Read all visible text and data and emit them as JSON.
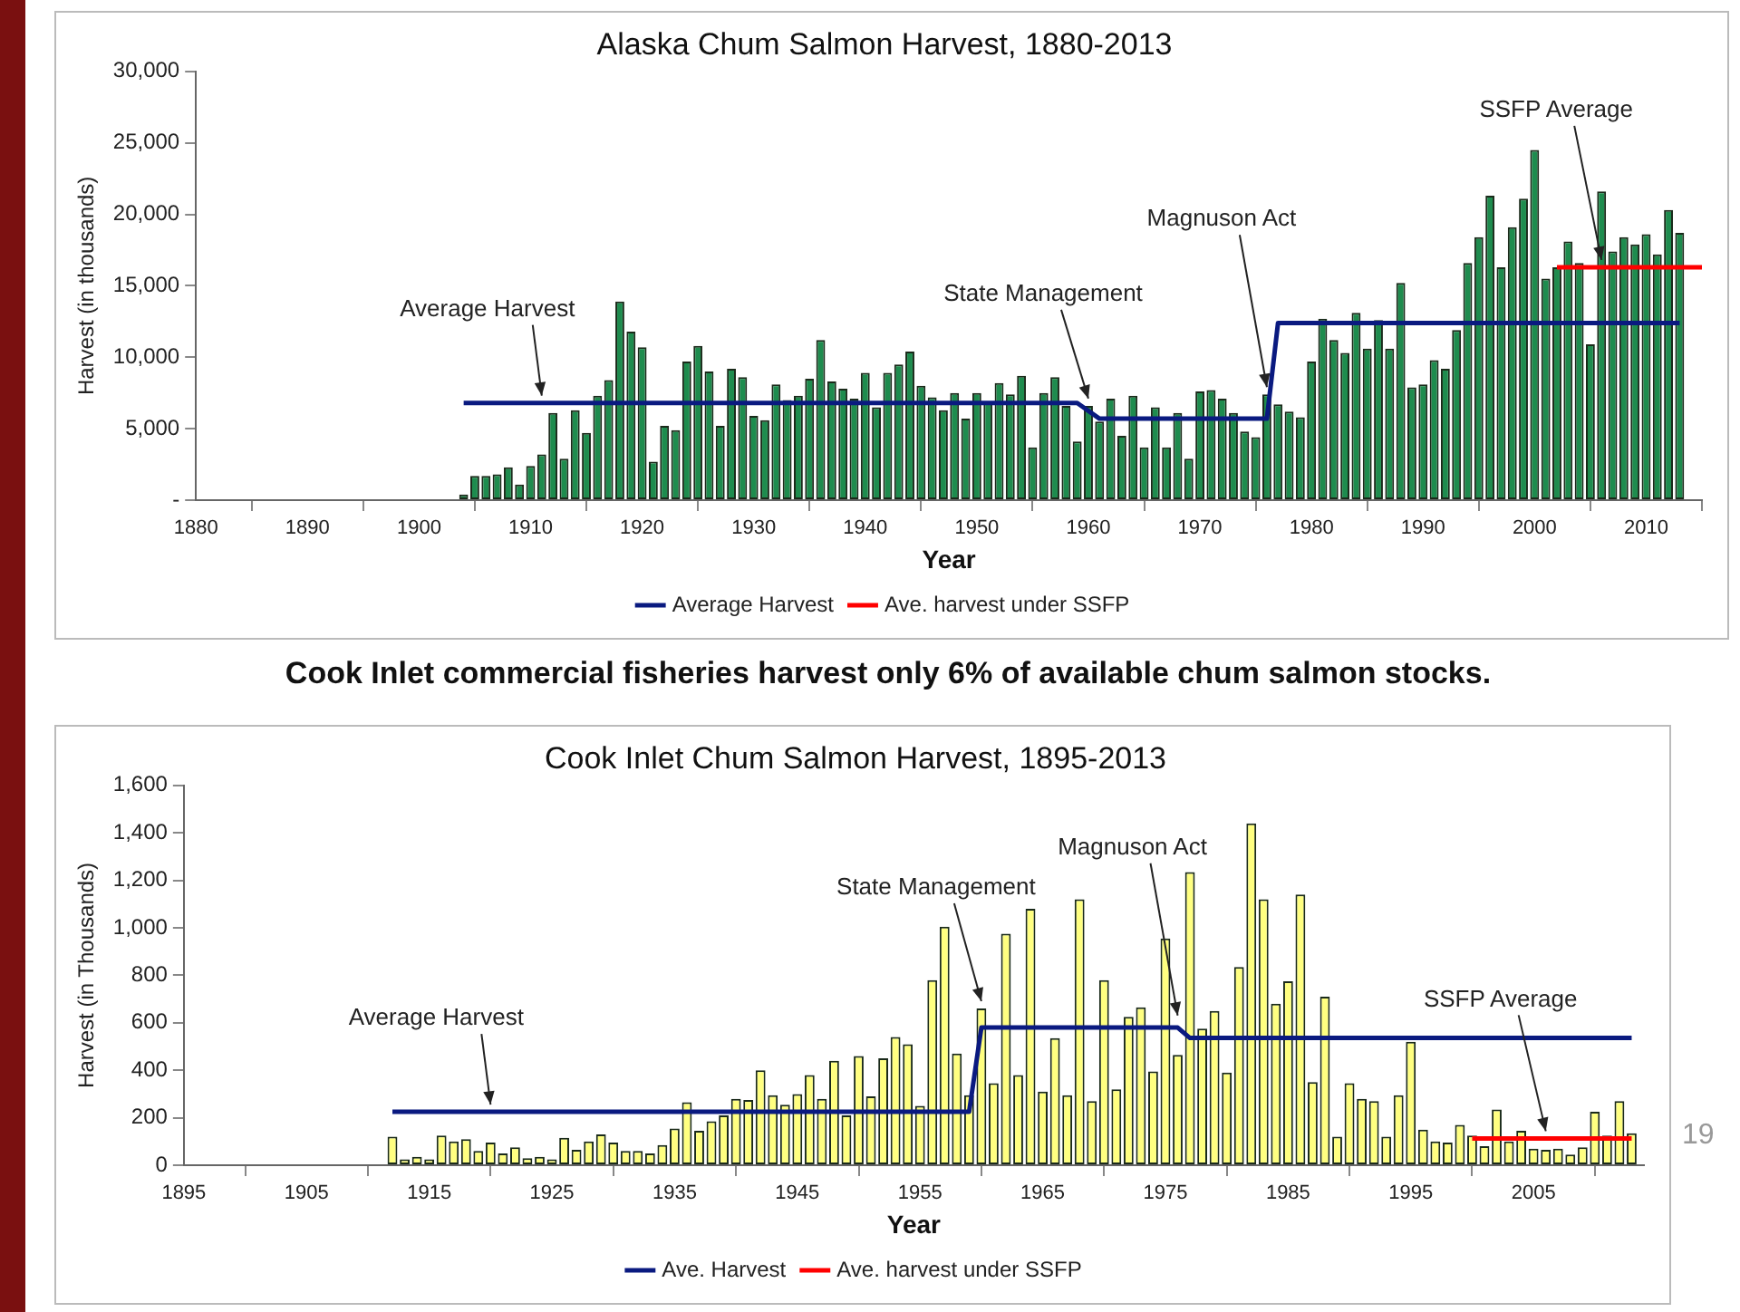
{
  "chart_data": [
    {
      "type": "bar",
      "title": "Alaska Chum Salmon Harvest, 1880-2013",
      "xlabel": "Year",
      "ylabel": "Harvest (in thousands)",
      "x": [
        1896,
        1897,
        1898,
        1899,
        1900,
        1901,
        1902,
        1903,
        1904,
        1905,
        1906,
        1907,
        1908,
        1909,
        1910,
        1911,
        1912,
        1913,
        1914,
        1915,
        1916,
        1917,
        1918,
        1919,
        1920,
        1921,
        1922,
        1923,
        1924,
        1925,
        1926,
        1927,
        1928,
        1929,
        1930,
        1931,
        1932,
        1933,
        1934,
        1935,
        1936,
        1937,
        1938,
        1939,
        1940,
        1941,
        1942,
        1943,
        1944,
        1945,
        1946,
        1947,
        1948,
        1949,
        1950,
        1951,
        1952,
        1953,
        1954,
        1955,
        1956,
        1957,
        1958,
        1959,
        1960,
        1961,
        1962,
        1963,
        1964,
        1965,
        1966,
        1967,
        1968,
        1969,
        1970,
        1971,
        1972,
        1973,
        1974,
        1975,
        1976,
        1977,
        1978,
        1979,
        1980,
        1981,
        1982,
        1983,
        1984,
        1985,
        1986,
        1987,
        1988,
        1989,
        1990,
        1991,
        1992,
        1993,
        1994,
        1995,
        1996,
        1997,
        1998,
        1999,
        2000,
        2001,
        2002,
        2003,
        2004,
        2005,
        2006,
        2007,
        2008,
        2009,
        2010,
        2011,
        2012,
        2013
      ],
      "series": [
        {
          "color": "#1e8c4e",
          "values": [
            0,
            0,
            0,
            0,
            0,
            null,
            null,
            null,
            400,
            1700,
            1700,
            1800,
            2300,
            1100,
            2400,
            3200,
            6100,
            2900,
            6300,
            4700,
            7300,
            8400,
            13900,
            11800,
            10700,
            2700,
            5200,
            4900,
            9700,
            10800,
            9000,
            5200,
            9200,
            8600,
            5900,
            5600,
            8100,
            7000,
            7300,
            8500,
            11200,
            8300,
            7800,
            7100,
            8900,
            6500,
            8900,
            9500,
            10400,
            8000,
            7200,
            6300,
            7500,
            5700,
            7500,
            6800,
            8200,
            7400,
            8700,
            3700,
            7500,
            8600,
            6600,
            4100,
            6600,
            5500,
            7100,
            4500,
            7300,
            3700,
            6500,
            3700,
            6100,
            2900,
            7600,
            7700,
            7100,
            6100,
            4800,
            4400,
            7400,
            6700,
            6200,
            5800,
            9700,
            12700,
            11200,
            10300,
            13100,
            10600,
            12600,
            10600,
            15200,
            7900,
            8100,
            9800,
            9200,
            11900,
            16600,
            18400,
            21300,
            16300,
            19100,
            21100,
            24500,
            15500,
            16300,
            18100,
            16600,
            10900,
            21600,
            17400,
            18400,
            17900,
            18600,
            17200,
            20300,
            18700
          ]
        },
        {
          "type": "line",
          "name": "Average Harvest",
          "color": "#0a1a80",
          "x": [
            1904,
            1959,
            1961,
            1976,
            1977,
            2013
          ],
          "values": [
            6800,
            6800,
            5700,
            5700,
            12400,
            12400
          ]
        },
        {
          "type": "line",
          "name": "Ave. harvest under SSFP",
          "color": "#ff0000",
          "x": [
            2002,
            2015
          ],
          "values": [
            16300,
            16300
          ]
        }
      ],
      "xlim": [
        1880,
        2015
      ],
      "xticks": [
        1880,
        1890,
        1900,
        1910,
        1920,
        1930,
        1940,
        1950,
        1960,
        1970,
        1980,
        1990,
        2000,
        2010
      ],
      "ylim": [
        0,
        30000
      ],
      "yticks": [
        {
          "value": 0,
          "label": "-"
        },
        {
          "value": 5000,
          "label": "5,000"
        },
        {
          "value": 10000,
          "label": "10,000"
        },
        {
          "value": 15000,
          "label": "15,000"
        },
        {
          "value": 20000,
          "label": "20,000"
        },
        {
          "value": 25000,
          "label": "25,000"
        },
        {
          "value": 30000,
          "label": "30,000"
        }
      ],
      "legend": "bottom",
      "annotations": [
        {
          "text": "Average Harvest",
          "x": 1911,
          "y": 6800
        },
        {
          "text": "State Management",
          "x": 1960,
          "y": 6600
        },
        {
          "text": "Magnuson Act",
          "x": 1976,
          "y": 7400
        },
        {
          "text": "SSFP Average",
          "x": 2006,
          "y": 16300
        }
      ]
    },
    {
      "type": "bar",
      "title": "Cook Inlet Chum Salmon Harvest, 1895-2013",
      "xlabel": "Year",
      "ylabel": "Harvest (in Thousands)",
      "x": [
        1910,
        1911,
        1912,
        1913,
        1914,
        1915,
        1916,
        1917,
        1918,
        1919,
        1920,
        1921,
        1922,
        1923,
        1924,
        1925,
        1926,
        1927,
        1928,
        1929,
        1930,
        1931,
        1932,
        1933,
        1934,
        1935,
        1936,
        1937,
        1938,
        1939,
        1940,
        1941,
        1942,
        1943,
        1944,
        1945,
        1946,
        1947,
        1948,
        1949,
        1950,
        1951,
        1952,
        1953,
        1954,
        1955,
        1956,
        1957,
        1958,
        1959,
        1960,
        1961,
        1962,
        1963,
        1964,
        1965,
        1966,
        1967,
        1968,
        1969,
        1970,
        1971,
        1972,
        1973,
        1974,
        1975,
        1976,
        1977,
        1978,
        1979,
        1980,
        1981,
        1982,
        1983,
        1984,
        1985,
        1986,
        1987,
        1988,
        1989,
        1990,
        1991,
        1992,
        1993,
        1994,
        1995,
        1996,
        1997,
        1998,
        1999,
        2000,
        2001,
        2002,
        2003,
        2004,
        2005,
        2006,
        2007,
        2008,
        2009,
        2010,
        2011,
        2012,
        2013
      ],
      "series": [
        {
          "color": "#ffff80",
          "values": [
            0,
            0,
            120,
            25,
            35,
            25,
            125,
            100,
            110,
            60,
            95,
            50,
            75,
            30,
            35,
            25,
            115,
            65,
            100,
            130,
            95,
            60,
            60,
            50,
            85,
            155,
            265,
            145,
            185,
            210,
            280,
            275,
            400,
            295,
            255,
            300,
            380,
            280,
            440,
            210,
            460,
            290,
            450,
            540,
            510,
            250,
            780,
            1005,
            470,
            295,
            660,
            345,
            975,
            380,
            1080,
            310,
            535,
            295,
            1120,
            270,
            780,
            320,
            625,
            665,
            395,
            955,
            465,
            1235,
            575,
            650,
            390,
            835,
            1440,
            1120,
            680,
            775,
            1140,
            350,
            710,
            120,
            345,
            280,
            270,
            120,
            295,
            520,
            150,
            100,
            95,
            170,
            125,
            80,
            235,
            100,
            145,
            70,
            65,
            70,
            45,
            75,
            225,
            125,
            270,
            135
          ]
        },
        {
          "type": "line",
          "name": "Ave. Harvest",
          "color": "#0a1a80",
          "x": [
            1912,
            1959,
            1960,
            1976,
            1977,
            2013
          ],
          "values": [
            225,
            225,
            580,
            580,
            536,
            536
          ]
        },
        {
          "type": "line",
          "name": "Ave. harvest under SSFP",
          "color": "#ff0000",
          "x": [
            2000,
            2013
          ],
          "values": [
            113,
            113
          ]
        }
      ],
      "xlim": [
        1895,
        2014
      ],
      "xticks": [
        1895,
        1905,
        1915,
        1925,
        1935,
        1945,
        1955,
        1965,
        1975,
        1985,
        1995,
        2005
      ],
      "ylim": [
        0,
        1600
      ],
      "yticks": [
        0,
        200,
        400,
        600,
        800,
        {
          "value": 1000,
          "label": "1,000"
        },
        {
          "value": 1200,
          "label": "1,200"
        },
        {
          "value": 1400,
          "label": "1,400"
        },
        {
          "value": 1600,
          "label": "1,600"
        }
      ],
      "legend": "bottom",
      "annotations": [
        "Cook Inlet commercial fisheries harvest only 6% of available chum salmon stocks.",
        "19",
        {
          "text": "Average Harvest",
          "x": 1920,
          "y": 225
        },
        {
          "text": "State Management",
          "x": 1960,
          "y": 660
        },
        {
          "text": "Magnuson Act",
          "x": 1976,
          "y": 600
        },
        {
          "text": "SSFP Average",
          "x": 2006,
          "y": 113
        }
      ]
    }
  ]
}
